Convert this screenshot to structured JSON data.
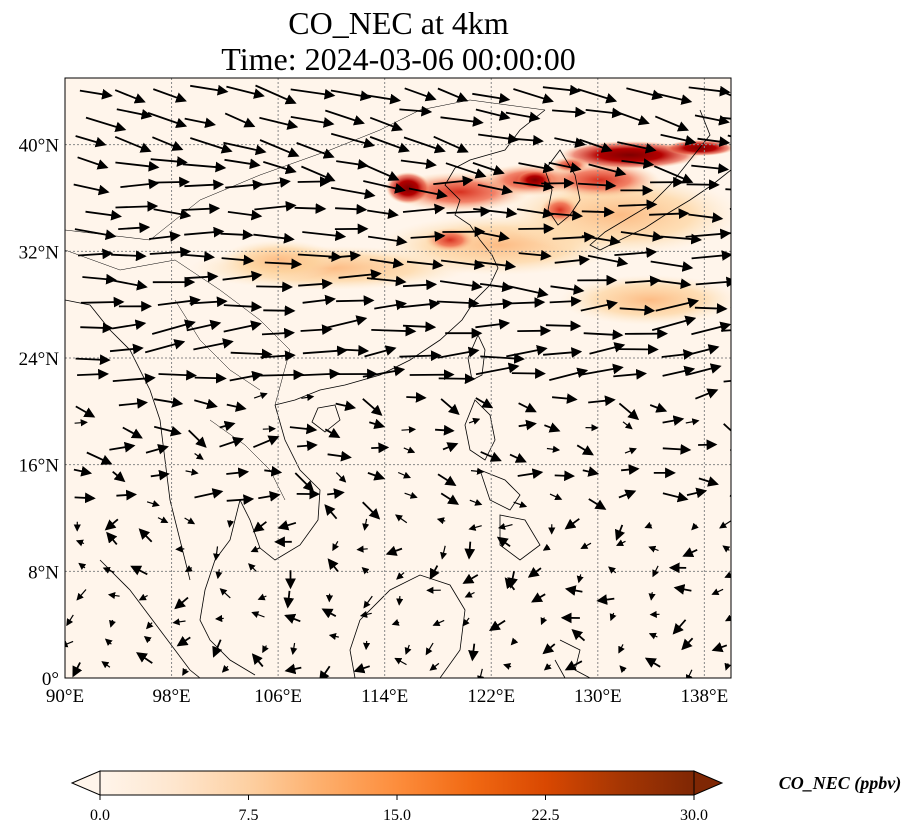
{
  "title": {
    "line1": "CO_NEC at 4km",
    "line2": "Time: 2024-03-06 00:00:00"
  },
  "map": {
    "lon_range": [
      90,
      140
    ],
    "lat_range": [
      0,
      45
    ],
    "gridlines": true,
    "lon_ticks": [
      {
        "value": 90,
        "label": "90°E"
      },
      {
        "value": 98,
        "label": "98°E"
      },
      {
        "value": 106,
        "label": "106°E"
      },
      {
        "value": 114,
        "label": "114°E"
      },
      {
        "value": 122,
        "label": "122°E"
      },
      {
        "value": 130,
        "label": "130°E"
      },
      {
        "value": 138,
        "label": "138°E"
      }
    ],
    "lat_ticks": [
      {
        "value": 0,
        "label": "0°"
      },
      {
        "value": 8,
        "label": "8°N"
      },
      {
        "value": 16,
        "label": "16°N"
      },
      {
        "value": 24,
        "label": "24°N"
      },
      {
        "value": 32,
        "label": "32°N"
      },
      {
        "value": 40,
        "label": "40°N"
      }
    ]
  },
  "colorbar": {
    "label": "CO_NEC (ppbv)",
    "min": 0,
    "max": 30,
    "ticks": [
      "0.0",
      "7.5",
      "15.0",
      "22.5",
      "30.0"
    ],
    "colors": [
      "#fff5eb",
      "#fee6ce",
      "#fdd0a2",
      "#fdae6b",
      "#fd8d3c",
      "#f16913",
      "#d94801",
      "#a63603",
      "#7f2704"
    ],
    "extend": "both"
  },
  "colors": {
    "coast": "#000000",
    "grid": "#888888",
    "arrow": "#000000"
  }
}
